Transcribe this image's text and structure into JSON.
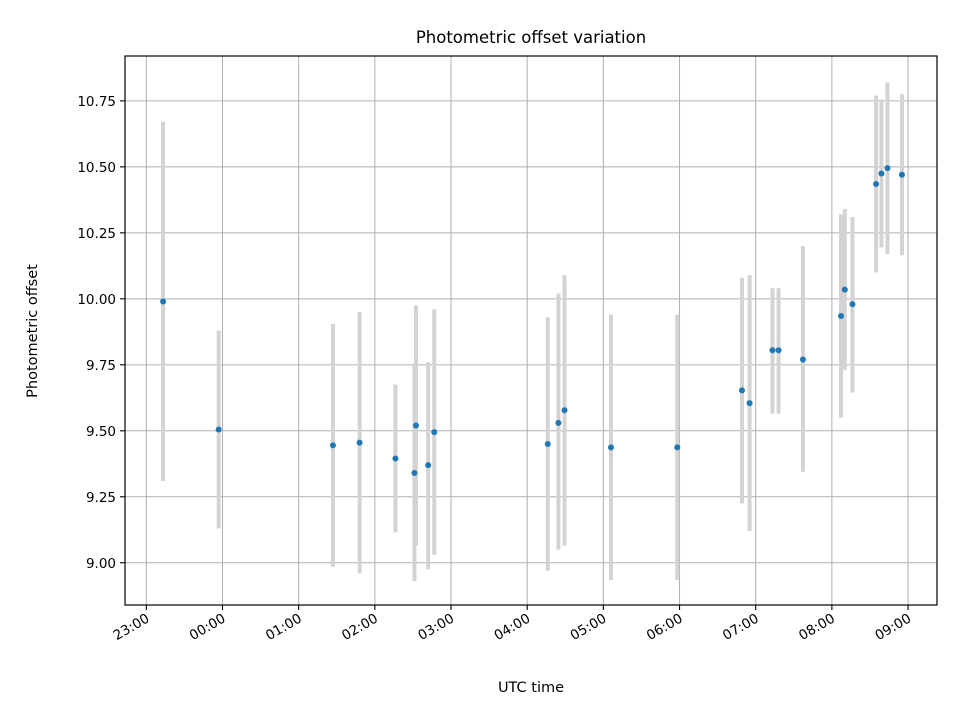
{
  "chart_data": {
    "type": "scatter",
    "title": "Photometric offset variation",
    "xlabel": "UTC time",
    "ylabel": "Photometric offset",
    "grid": true,
    "x_unit": "hours",
    "xlim": [
      -1.28,
      9.38
    ],
    "ylim": [
      8.84,
      10.92
    ],
    "x_ticks": [
      -1,
      0,
      1,
      2,
      3,
      4,
      5,
      6,
      7,
      8,
      9
    ],
    "x_tick_labels": [
      "23:00",
      "00:00",
      "01:00",
      "02:00",
      "03:00",
      "04:00",
      "05:00",
      "06:00",
      "07:00",
      "08:00",
      "09:00"
    ],
    "y_ticks": [
      9.0,
      9.25,
      9.5,
      9.75,
      10.0,
      10.25,
      10.5,
      10.75
    ],
    "y_tick_labels": [
      "9.00",
      "9.25",
      "9.50",
      "9.75",
      "10.00",
      "10.25",
      "10.50",
      "10.75"
    ],
    "colors": {
      "point": "#1f77b4",
      "error_bar": "#d3d3d3",
      "grid": "#b0b0b0"
    },
    "points": [
      {
        "x": -0.78,
        "y": 9.99,
        "ylow": 9.31,
        "yhigh": 10.67
      },
      {
        "x": -0.05,
        "y": 9.505,
        "ylow": 9.13,
        "yhigh": 9.88
      },
      {
        "x": 1.45,
        "y": 9.445,
        "ylow": 8.985,
        "yhigh": 9.905
      },
      {
        "x": 1.8,
        "y": 9.455,
        "ylow": 8.96,
        "yhigh": 9.95
      },
      {
        "x": 2.27,
        "y": 9.395,
        "ylow": 9.115,
        "yhigh": 9.675
      },
      {
        "x": 2.54,
        "y": 9.52,
        "ylow": 9.065,
        "yhigh": 9.975
      },
      {
        "x": 2.52,
        "y": 9.34,
        "ylow": 8.93,
        "yhigh": 9.75
      },
      {
        "x": 2.7,
        "y": 9.37,
        "ylow": 8.975,
        "yhigh": 9.76
      },
      {
        "x": 2.78,
        "y": 9.495,
        "ylow": 9.03,
        "yhigh": 9.96
      },
      {
        "x": 4.27,
        "y": 9.45,
        "ylow": 8.97,
        "yhigh": 9.93
      },
      {
        "x": 4.41,
        "y": 9.53,
        "ylow": 9.05,
        "yhigh": 10.02
      },
      {
        "x": 4.49,
        "y": 9.578,
        "ylow": 9.065,
        "yhigh": 10.09
      },
      {
        "x": 5.1,
        "y": 9.437,
        "ylow": 8.935,
        "yhigh": 9.94
      },
      {
        "x": 5.97,
        "y": 9.437,
        "ylow": 8.935,
        "yhigh": 9.94
      },
      {
        "x": 6.82,
        "y": 9.653,
        "ylow": 9.225,
        "yhigh": 10.08
      },
      {
        "x": 6.92,
        "y": 9.605,
        "ylow": 9.12,
        "yhigh": 10.09
      },
      {
        "x": 7.22,
        "y": 9.805,
        "ylow": 9.565,
        "yhigh": 10.04
      },
      {
        "x": 7.3,
        "y": 9.805,
        "ylow": 9.565,
        "yhigh": 10.04
      },
      {
        "x": 7.62,
        "y": 9.77,
        "ylow": 9.345,
        "yhigh": 10.2
      },
      {
        "x": 8.12,
        "y": 9.935,
        "ylow": 9.55,
        "yhigh": 10.32
      },
      {
        "x": 8.17,
        "y": 10.035,
        "ylow": 9.73,
        "yhigh": 10.34
      },
      {
        "x": 8.27,
        "y": 9.98,
        "ylow": 9.645,
        "yhigh": 10.31
      },
      {
        "x": 8.58,
        "y": 10.435,
        "ylow": 10.1,
        "yhigh": 10.77
      },
      {
        "x": 8.65,
        "y": 10.475,
        "ylow": 10.195,
        "yhigh": 10.755
      },
      {
        "x": 8.73,
        "y": 10.495,
        "ylow": 10.17,
        "yhigh": 10.82
      },
      {
        "x": 8.92,
        "y": 10.47,
        "ylow": 10.165,
        "yhigh": 10.775
      }
    ]
  }
}
